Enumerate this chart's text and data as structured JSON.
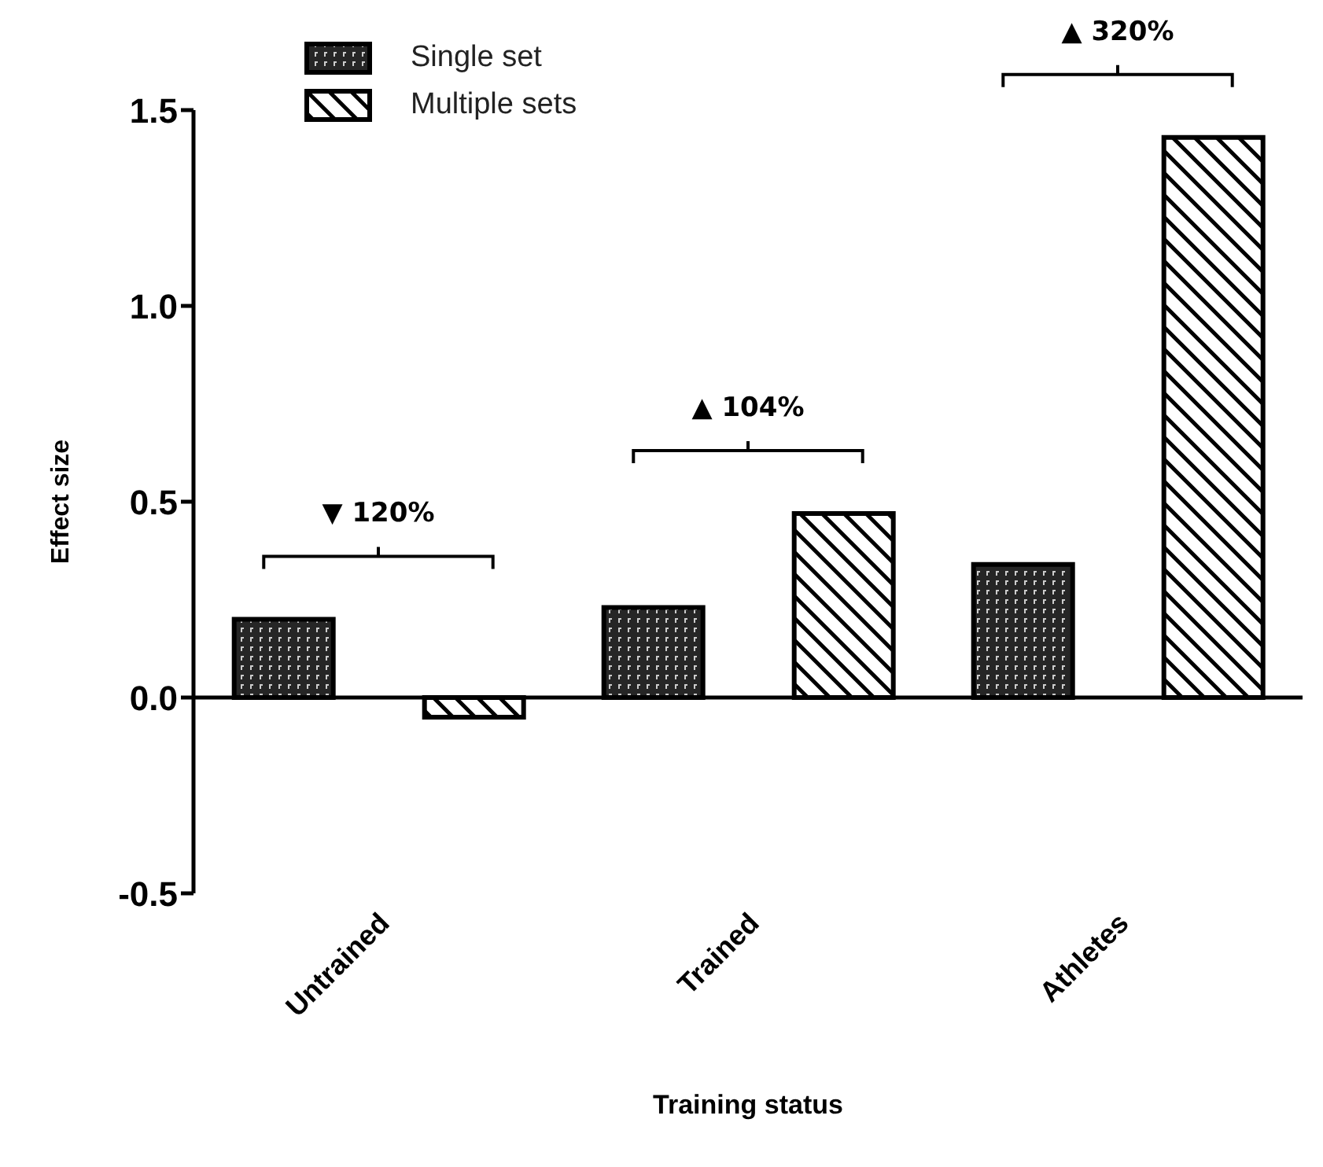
{
  "chart_data": {
    "type": "bar",
    "xlabel": "Training status",
    "ylabel": "Effect size",
    "categories": [
      "Untrained",
      "Trained",
      "Athletes"
    ],
    "series": [
      {
        "name": "Single set",
        "color": "#000000",
        "values": [
          0.2,
          0.23,
          0.34
        ]
      },
      {
        "name": "Multiple sets",
        "color": "#000000",
        "values": [
          -0.05,
          0.47,
          1.43
        ]
      }
    ],
    "ylim": [
      -0.5,
      1.5
    ],
    "yticks": [
      {
        "value": -0.5,
        "label": "-0.5"
      },
      {
        "value": 0,
        "label": "0.0"
      },
      {
        "value": 0.5,
        "label": "0.5"
      },
      {
        "value": 1,
        "label": "1.0"
      },
      {
        "value": 1.5,
        "label": "1.5"
      }
    ],
    "ref_lines": [
      {
        "axis": "y",
        "value": 0,
        "color": "#000000"
      }
    ],
    "annotations": [
      "▼ 120%",
      "▲ 104%",
      "▲ 320%"
    ],
    "legend": "top left",
    "grid": false
  }
}
